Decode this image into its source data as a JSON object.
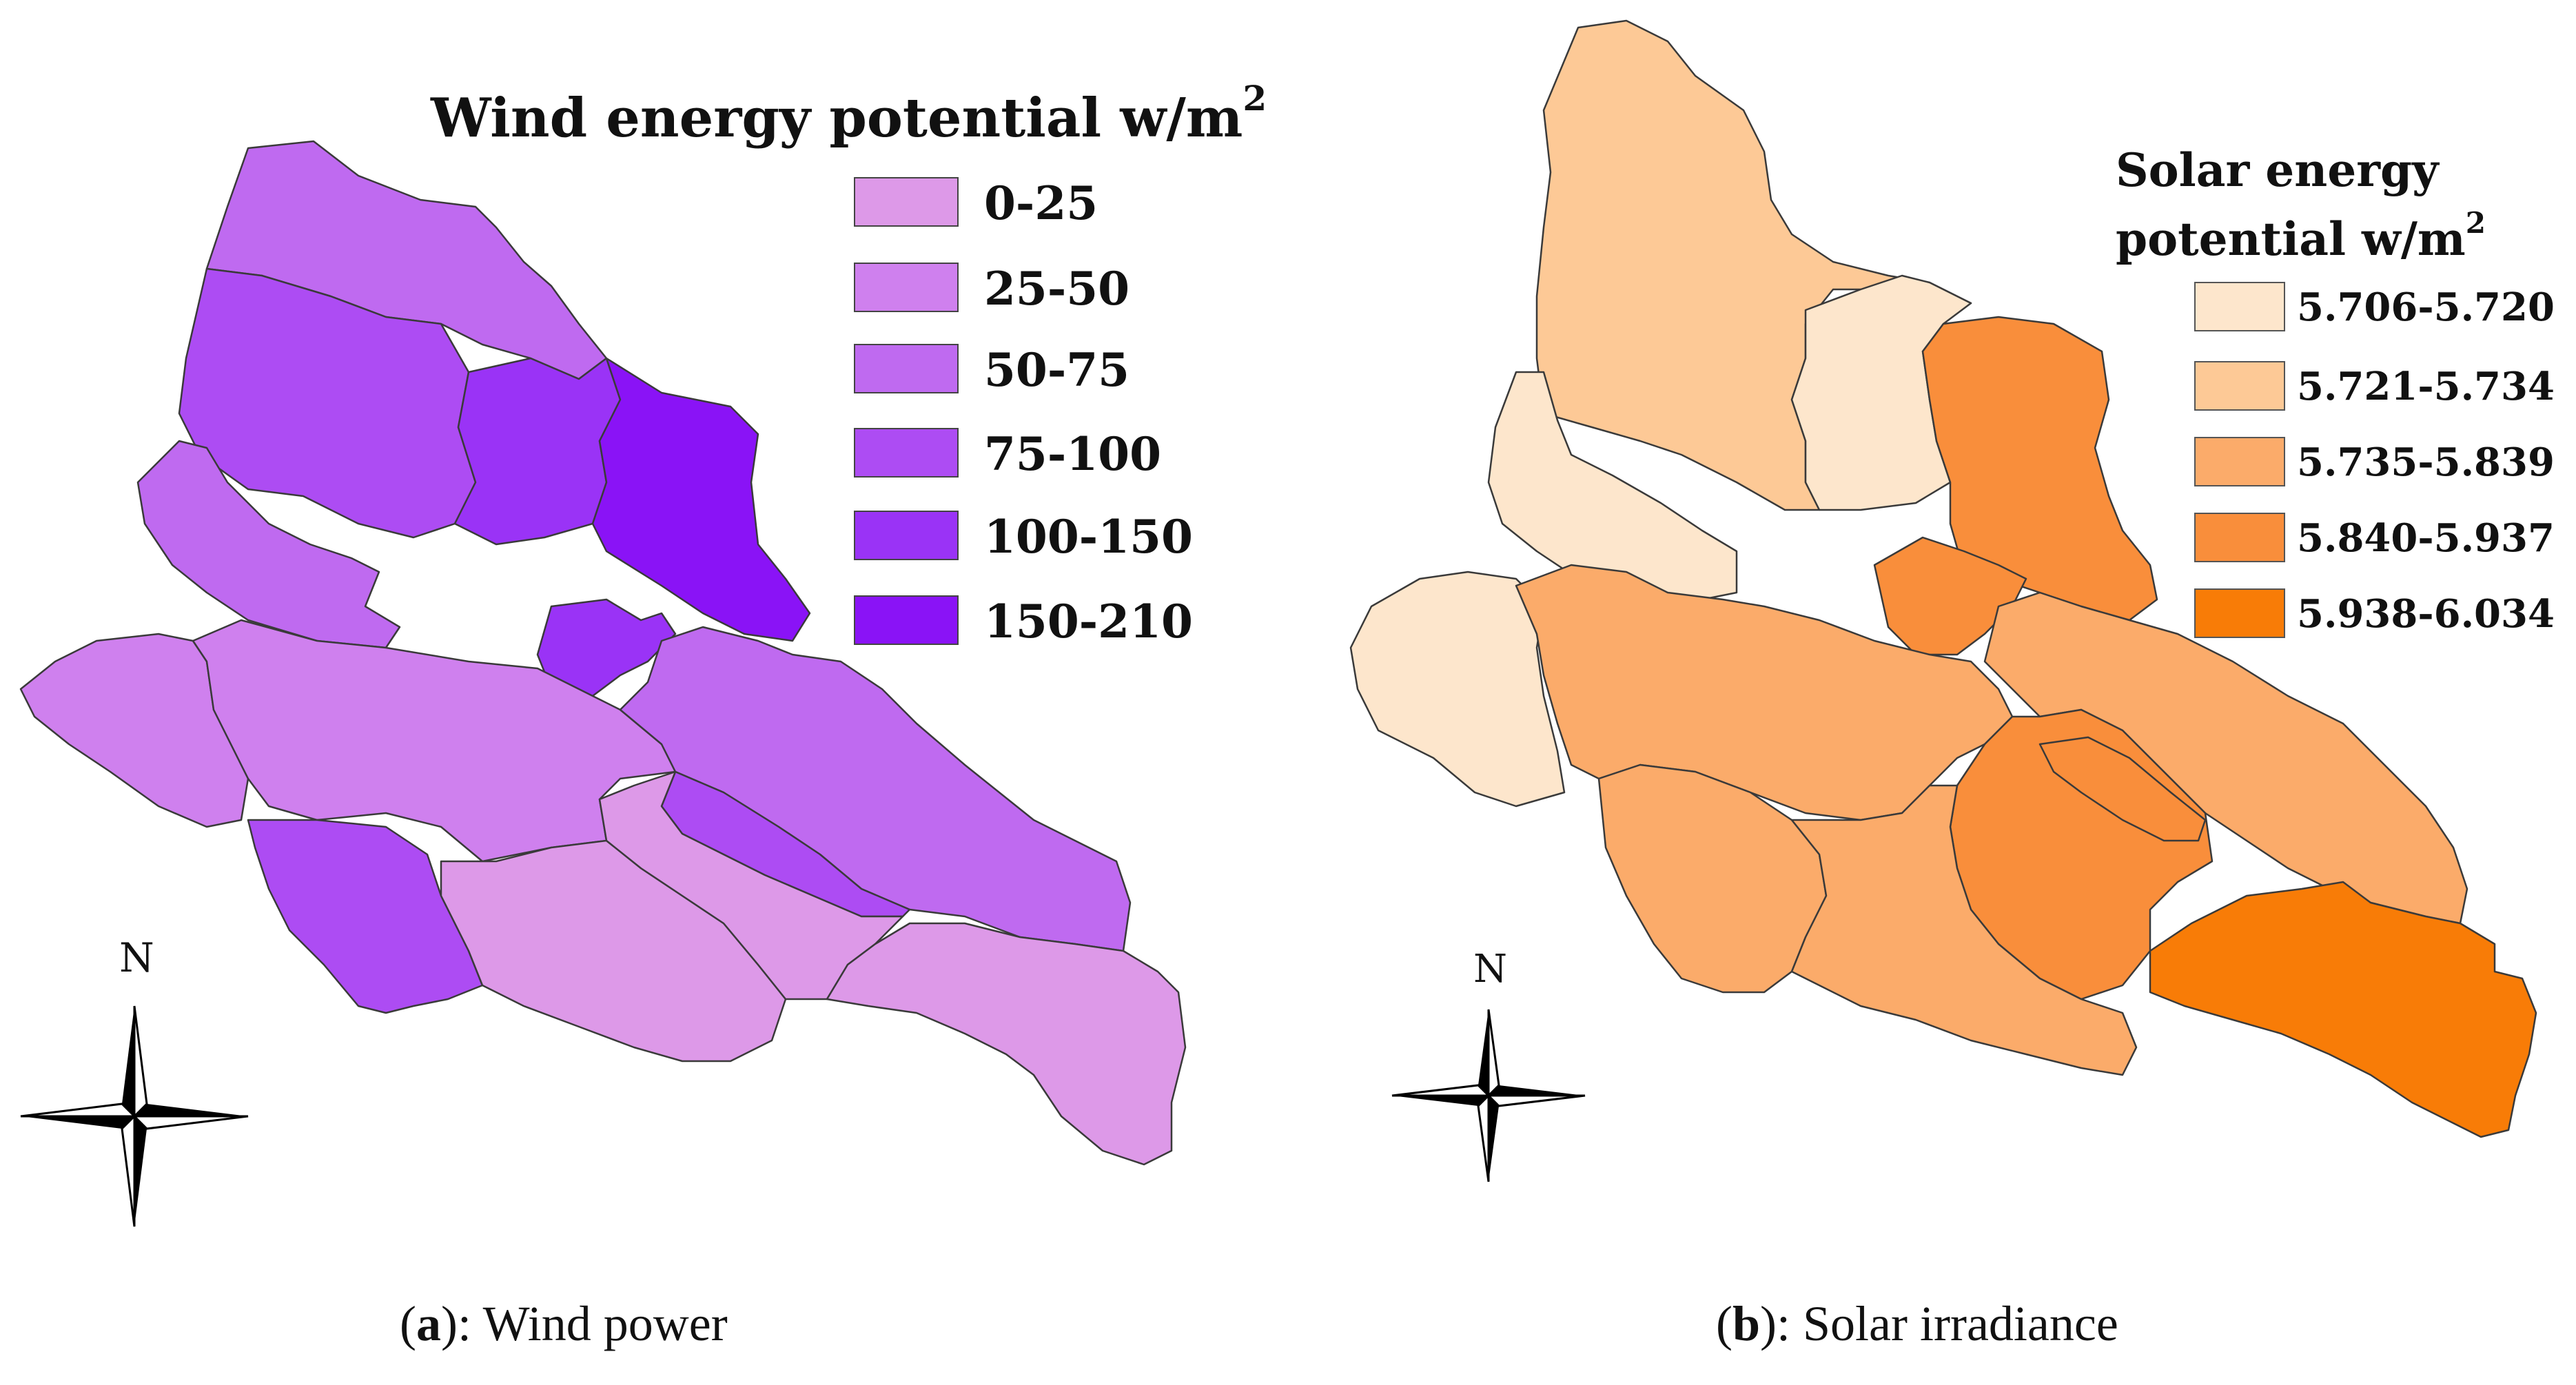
{
  "panel_a": {
    "legend": {
      "title": "Wind energy potential w/m",
      "superscript": "2",
      "items": [
        {
          "label": "0-25",
          "color": "#dd99e8"
        },
        {
          "label": "25-50",
          "color": "#cf80ee"
        },
        {
          "label": "50-75",
          "color": "#bf6af0"
        },
        {
          "label": "75-100",
          "color": "#ad4cf3"
        },
        {
          "label": "100-150",
          "color": "#9a33f6"
        },
        {
          "label": "150-210",
          "color": "#8a13f6"
        }
      ]
    },
    "compass_label": "N",
    "caption_letter": "a",
    "caption_text": "): Wind power"
  },
  "panel_b": {
    "legend": {
      "title_line1": "Solar energy",
      "title_line2": "potential w/m",
      "superscript": "2",
      "items": [
        {
          "label": "5.706-5.720",
          "color": "#fde6cc"
        },
        {
          "label": "5.721-5.734",
          "color": "#fdc996"
        },
        {
          "label": "5.735-5.839",
          "color": "#fbab6a"
        },
        {
          "label": "5.840-5.937",
          "color": "#f98e3b"
        },
        {
          "label": "5.938-6.034",
          "color": "#f87c07"
        }
      ]
    },
    "compass_label": "N",
    "caption_letter": "b",
    "caption_text": "): Solar irradiance"
  }
}
